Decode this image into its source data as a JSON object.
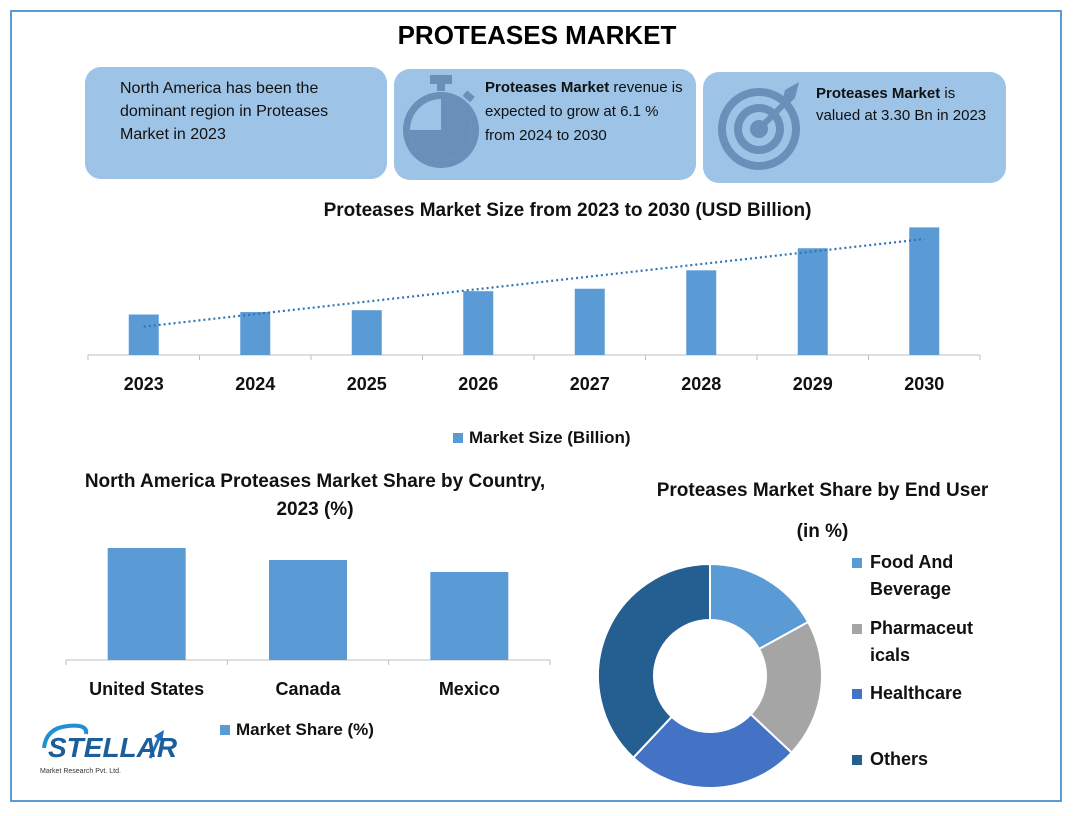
{
  "header": {
    "title": "PROTEASES MARKET"
  },
  "cards": [
    {
      "text": "North America has been the dominant region in Proteases Market in 2023"
    },
    {
      "bold": "Proteases Market",
      "text": " revenue is expected to grow at 6.1 % from 2024 to 2030",
      "icon": "stopwatch-icon"
    },
    {
      "bold": "Proteases Market",
      "text": " is valued at 3.30 Bn in 2023",
      "icon": "target-icon"
    }
  ],
  "colors": {
    "bar": "#5b9bd5",
    "trend": "#2e75b6",
    "border": "#5b9bd5",
    "card": "#9dc3e6"
  },
  "chart_data": [
    {
      "type": "bar",
      "title": "Proteases Market Size from 2023 to 2030 (USD Billion)",
      "categories": [
        "2023",
        "2024",
        "2025",
        "2026",
        "2027",
        "2028",
        "2029",
        "2030"
      ],
      "series": [
        {
          "name": "Market Size (Billion)",
          "values": [
            3.3,
            3.5,
            3.65,
            5.2,
            5.4,
            6.9,
            8.7,
            10.4
          ]
        }
      ],
      "trendline": "linear (dotted)",
      "ylim": [
        0,
        11
      ],
      "legend": "bottom"
    },
    {
      "type": "bar",
      "title": "North America Proteases Market  Share by Country, 2023 (%)",
      "categories": [
        "United States",
        "Canada",
        "Mexico"
      ],
      "series": [
        {
          "name": "Market Share (%)",
          "values": [
            42,
            37.5,
            33
          ]
        }
      ],
      "ylim": [
        0,
        45
      ],
      "legend": "bottom"
    },
    {
      "type": "pie",
      "title": "Proteases Market Share by End User  (in %)",
      "hole": 0.5,
      "labels": [
        "Food And Beverage",
        "Pharmaceuticals",
        "Healthcare",
        "Others"
      ],
      "legend_lines": [
        [
          "Food And",
          "Beverage"
        ],
        [
          "Pharmaceut",
          "icals"
        ],
        [
          "Healthcare"
        ],
        [
          "Others"
        ]
      ],
      "values": [
        17,
        20,
        25,
        38
      ],
      "colors": [
        "#5b9bd5",
        "#a5a5a5",
        "#4472c4",
        "#255e91"
      ],
      "legend": "right"
    }
  ],
  "logo": {
    "brand": "STELLAR",
    "subtitle": "Market Research Pvt. Ltd."
  }
}
